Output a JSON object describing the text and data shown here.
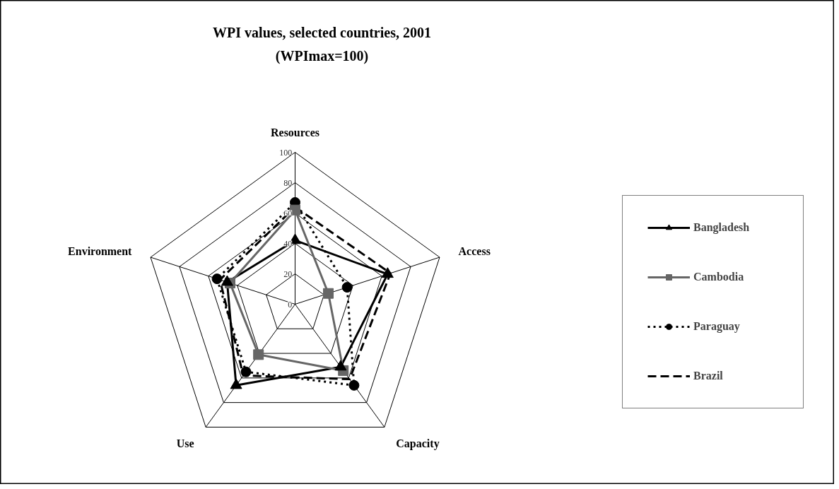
{
  "chart_data": {
    "type": "radar",
    "title": "WPI values, selected countries, 2001",
    "subtitle": "(WPImax=100)",
    "categories": [
      "Resources",
      "Access",
      "Capacity",
      "Use",
      "Environment"
    ],
    "ylim": [
      0,
      100
    ],
    "yticks": [
      0,
      20,
      40,
      60,
      80,
      100
    ],
    "grid": true,
    "legend": "right",
    "series": [
      {
        "name": "Bangladesh",
        "color": "#000000",
        "marker": "triangle",
        "line_style": "solid",
        "values": [
          42,
          64,
          51,
          66,
          47
        ]
      },
      {
        "name": "Cambodia",
        "color": "#666666",
        "marker": "square",
        "line_style": "solid",
        "values": [
          62,
          23,
          54,
          41,
          45
        ]
      },
      {
        "name": "Paraguay",
        "color": "#000000",
        "marker": "circle",
        "line_style": "dotted",
        "values": [
          67,
          36,
          66,
          55,
          54
        ]
      },
      {
        "name": "Brazil",
        "color": "#000000",
        "marker": "none",
        "line_style": "dashed",
        "values": [
          64,
          66,
          61,
          58,
          52
        ]
      }
    ]
  }
}
